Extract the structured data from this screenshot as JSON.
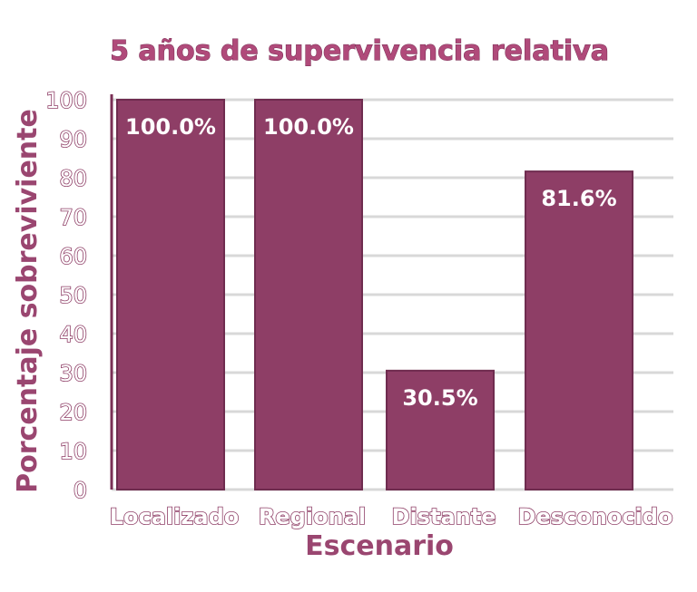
{
  "chart_data": {
    "type": "bar",
    "title": "5 años de supervivencia relativa",
    "xlabel": "Escenario",
    "ylabel": "Porcentaje sobreviviente",
    "categories": [
      "Localizado",
      "Regional",
      "Distante",
      "Desconocido"
    ],
    "values": [
      100.0,
      100.0,
      30.5,
      81.6
    ],
    "value_labels": [
      "100.0%",
      "100.0%",
      "30.5%",
      "81.6%"
    ],
    "yticks": [
      0,
      10,
      20,
      30,
      40,
      50,
      60,
      70,
      80,
      90,
      100
    ],
    "ylim": [
      0,
      100
    ],
    "grid": true,
    "colors": {
      "bar": "#8e3e66",
      "bar_stroke": "#6f2c4f",
      "grid": "#d8d8d8",
      "title": "#b04a7a",
      "axis_title": "#9a4670"
    }
  }
}
